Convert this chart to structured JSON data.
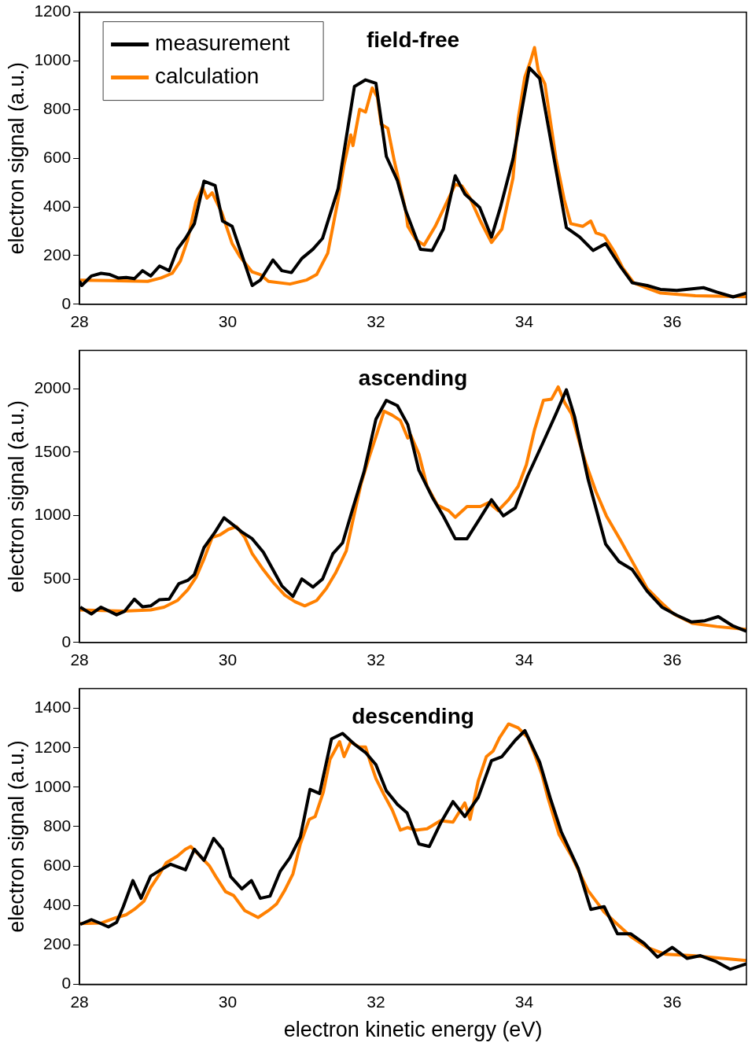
{
  "chart_data": [
    {
      "type": "line",
      "title": "field-free",
      "ylabel": "electron signal (a.u.)",
      "xlim": [
        28,
        37
      ],
      "xticks": [
        28,
        30,
        32,
        34,
        36
      ],
      "ylim": [
        0,
        1200
      ],
      "yticks": [
        0,
        200,
        400,
        600,
        800,
        1000,
        1200
      ],
      "legend": "top left",
      "series": [
        {
          "name": "measurement",
          "color": "#000000",
          "x": [
            28.0,
            28.03,
            28.16,
            28.29,
            28.41,
            28.52,
            28.63,
            28.74,
            28.85,
            28.96,
            29.08,
            29.21,
            29.32,
            29.43,
            29.55,
            29.68,
            29.83,
            29.93,
            30.06,
            30.33,
            30.44,
            30.61,
            30.73,
            30.86,
            31.0,
            31.15,
            31.28,
            31.49,
            31.71,
            31.86,
            32.0,
            32.14,
            32.29,
            32.4,
            32.6,
            32.76,
            32.91,
            33.07,
            33.2,
            33.4,
            33.56,
            33.68,
            33.85,
            34.07,
            34.21,
            34.57,
            34.75,
            34.93,
            35.1,
            35.3,
            35.46,
            35.66,
            35.84,
            36.06,
            36.42,
            36.6,
            36.82,
            37.0
          ],
          "values": [
            95,
            77,
            116,
            127,
            122,
            108,
            110,
            105,
            138,
            116,
            157,
            138,
            226,
            271,
            331,
            506,
            488,
            342,
            320,
            77,
            99,
            182,
            138,
            130,
            188,
            226,
            271,
            475,
            895,
            922,
            908,
            608,
            508,
            387,
            226,
            221,
            309,
            528,
            453,
            398,
            276,
            398,
            597,
            972,
            928,
            315,
            276,
            221,
            249,
            155,
            88,
            77,
            61,
            57,
            68,
            50,
            30,
            46
          ]
        },
        {
          "name": "calculation",
          "color": "#ff8000",
          "x": [
            28.01,
            28.41,
            28.92,
            29.1,
            29.25,
            29.36,
            29.46,
            29.57,
            29.66,
            29.72,
            29.79,
            29.92,
            30.06,
            30.17,
            30.33,
            30.44,
            30.55,
            30.84,
            31.06,
            31.2,
            31.35,
            31.49,
            31.57,
            31.66,
            31.69,
            31.78,
            31.86,
            31.95,
            32.02,
            32.07,
            32.16,
            32.25,
            32.4,
            32.43,
            32.54,
            32.65,
            32.8,
            32.94,
            33.07,
            33.16,
            33.27,
            33.41,
            33.56,
            33.7,
            33.85,
            33.92,
            34.01,
            34.08,
            34.14,
            34.19,
            34.28,
            34.43,
            34.54,
            34.63,
            34.79,
            34.9,
            34.97,
            35.08,
            35.22,
            35.33,
            35.48,
            35.66,
            35.84,
            36.31,
            37.0
          ],
          "values": [
            99,
            97,
            94,
            108,
            127,
            177,
            265,
            420,
            481,
            436,
            458,
            376,
            249,
            193,
            133,
            122,
            94,
            83,
            99,
            122,
            210,
            431,
            574,
            696,
            652,
            801,
            790,
            889,
            851,
            740,
            723,
            586,
            387,
            320,
            265,
            243,
            320,
            409,
            492,
            486,
            436,
            342,
            254,
            309,
            519,
            762,
            934,
            994,
            1055,
            961,
            906,
            597,
            431,
            331,
            320,
            342,
            293,
            282,
            215,
            149,
            88,
            66,
            46,
            35,
            31
          ]
        }
      ]
    },
    {
      "type": "line",
      "title": "ascending",
      "ylabel": "electron signal (a.u.)",
      "xlim": [
        28,
        37
      ],
      "xticks": [
        28,
        30,
        32,
        34,
        36
      ],
      "ylim": [
        0,
        2300
      ],
      "yticks": [
        0,
        500,
        1000,
        1500,
        2000
      ],
      "series": [
        {
          "color": "#000000",
          "x": [
            28.01,
            28.16,
            28.29,
            28.5,
            28.61,
            28.74,
            28.85,
            28.96,
            29.08,
            29.21,
            29.34,
            29.46,
            29.55,
            29.68,
            29.83,
            29.95,
            30.08,
            30.19,
            30.33,
            30.48,
            30.73,
            30.88,
            31.0,
            31.15,
            31.28,
            31.42,
            31.55,
            31.69,
            31.84,
            32.0,
            32.14,
            32.29,
            32.43,
            32.58,
            32.76,
            32.91,
            33.07,
            33.23,
            33.4,
            33.56,
            33.72,
            33.88,
            34.05,
            34.25,
            34.43,
            34.57,
            34.68,
            34.86,
            35.1,
            35.28,
            35.46,
            35.66,
            35.86,
            36.06,
            36.26,
            36.44,
            36.62,
            36.82,
            37.0
          ],
          "values": [
            278,
            224,
            278,
            218,
            246,
            341,
            281,
            288,
            337,
            341,
            463,
            489,
            535,
            747,
            870,
            982,
            923,
            870,
            817,
            711,
            446,
            362,
            500,
            436,
            500,
            700,
            784,
            1060,
            1346,
            1759,
            1907,
            1865,
            1716,
            1356,
            1144,
            995,
            817,
            817,
            974,
            1124,
            997,
            1060,
            1314,
            1568,
            1801,
            1990,
            1780,
            1293,
            775,
            637,
            573,
            404,
            278,
            214,
            161,
            171,
            203,
            129,
            87
          ]
        },
        {
          "color": "#ff8000",
          "x": [
            28.01,
            28.59,
            28.96,
            29.14,
            29.32,
            29.46,
            29.57,
            29.68,
            29.79,
            29.9,
            30.01,
            30.12,
            30.23,
            30.33,
            30.48,
            30.62,
            30.77,
            30.91,
            31.04,
            31.2,
            31.33,
            31.46,
            31.6,
            31.71,
            31.8,
            31.91,
            32.0,
            32.11,
            32.22,
            32.33,
            32.43,
            32.47,
            32.58,
            32.69,
            32.83,
            32.98,
            33.07,
            33.23,
            33.41,
            33.52,
            33.65,
            33.79,
            33.92,
            34.03,
            34.14,
            34.26,
            34.37,
            34.46,
            34.55,
            34.64,
            34.75,
            34.84,
            34.97,
            35.11,
            35.3,
            35.48,
            35.66,
            35.84,
            36.02,
            36.27,
            36.6,
            37.0
          ],
          "values": [
            256,
            246,
            256,
            278,
            330,
            415,
            510,
            658,
            827,
            849,
            891,
            912,
            827,
            700,
            573,
            468,
            373,
            320,
            288,
            330,
            425,
            552,
            722,
            1018,
            1251,
            1462,
            1621,
            1822,
            1790,
            1748,
            1610,
            1632,
            1484,
            1230,
            1081,
            1039,
            986,
            1071,
            1071,
            1102,
            1039,
            1124,
            1230,
            1399,
            1674,
            1907,
            1917,
            2013,
            1886,
            1801,
            1568,
            1399,
            1187,
            997,
            806,
            616,
            425,
            320,
            224,
            150,
            125,
            103
          ]
        }
      ]
    },
    {
      "type": "line",
      "title": "descending",
      "xlabel": "electron kinetic energy (eV)",
      "ylabel": "electron signal (a.u.)",
      "xlim": [
        28,
        37
      ],
      "xticks": [
        28,
        30,
        32,
        34,
        36
      ],
      "ylim": [
        0,
        1500
      ],
      "yticks": [
        0,
        200,
        400,
        600,
        800,
        1000,
        1200,
        1400
      ],
      "series": [
        {
          "color": "#000000",
          "x": [
            28.01,
            28.16,
            28.27,
            28.39,
            28.5,
            28.59,
            28.72,
            28.83,
            28.96,
            29.08,
            29.23,
            29.43,
            29.55,
            29.68,
            29.81,
            29.93,
            30.04,
            30.19,
            30.32,
            30.44,
            30.57,
            30.71,
            30.84,
            30.98,
            31.11,
            31.24,
            31.4,
            31.55,
            31.71,
            31.86,
            32.0,
            32.14,
            32.29,
            32.42,
            32.58,
            32.72,
            32.88,
            33.04,
            33.2,
            33.38,
            33.56,
            33.7,
            33.88,
            34.01,
            34.21,
            34.35,
            34.5,
            34.73,
            34.9,
            35.08,
            35.26,
            35.44,
            35.62,
            35.8,
            36.0,
            36.2,
            36.38,
            36.58,
            36.78,
            37.0
          ],
          "values": [
            304,
            328,
            311,
            291,
            314,
            394,
            526,
            436,
            549,
            577,
            609,
            581,
            685,
            629,
            740,
            685,
            546,
            484,
            526,
            436,
            447,
            574,
            643,
            747,
            989,
            968,
            1245,
            1273,
            1218,
            1176,
            1114,
            982,
            913,
            870,
            712,
            699,
            823,
            927,
            851,
            948,
            1135,
            1155,
            1238,
            1287,
            1127,
            948,
            775,
            588,
            380,
            394,
            256,
            256,
            208,
            138,
            187,
            131,
            145,
            117,
            76,
            104
          ]
        },
        {
          "color": "#ff8000",
          "x": [
            28.01,
            28.3,
            28.48,
            28.63,
            28.74,
            28.87,
            28.96,
            29.07,
            29.17,
            29.32,
            29.43,
            29.5,
            29.61,
            29.75,
            29.84,
            29.97,
            30.08,
            30.23,
            30.41,
            30.55,
            30.66,
            30.77,
            30.88,
            30.98,
            31.1,
            31.18,
            31.29,
            31.38,
            31.51,
            31.57,
            31.66,
            31.77,
            31.86,
            31.93,
            32.0,
            32.11,
            32.22,
            32.33,
            32.43,
            32.54,
            32.69,
            32.87,
            33.04,
            33.2,
            33.27,
            33.38,
            33.49,
            33.58,
            33.67,
            33.79,
            33.92,
            34.05,
            34.14,
            34.24,
            34.32,
            34.47,
            34.65,
            34.86,
            35.08,
            35.28,
            35.44,
            35.66,
            35.91,
            36.27,
            37.0
          ],
          "values": [
            308,
            311,
            336,
            353,
            380,
            422,
            491,
            553,
            616,
            650,
            685,
            699,
            657,
            602,
            546,
            470,
            450,
            374,
            339,
            374,
            408,
            477,
            560,
            712,
            837,
            851,
            975,
            1141,
            1231,
            1155,
            1231,
            1204,
            1204,
            1121,
            1044,
            961,
            885,
            782,
            795,
            782,
            789,
            830,
            823,
            920,
            837,
            1031,
            1155,
            1183,
            1252,
            1321,
            1301,
            1252,
            1169,
            1065,
            948,
            761,
            643,
            477,
            367,
            297,
            242,
            187,
            152,
            145,
            120
          ]
        }
      ]
    }
  ]
}
